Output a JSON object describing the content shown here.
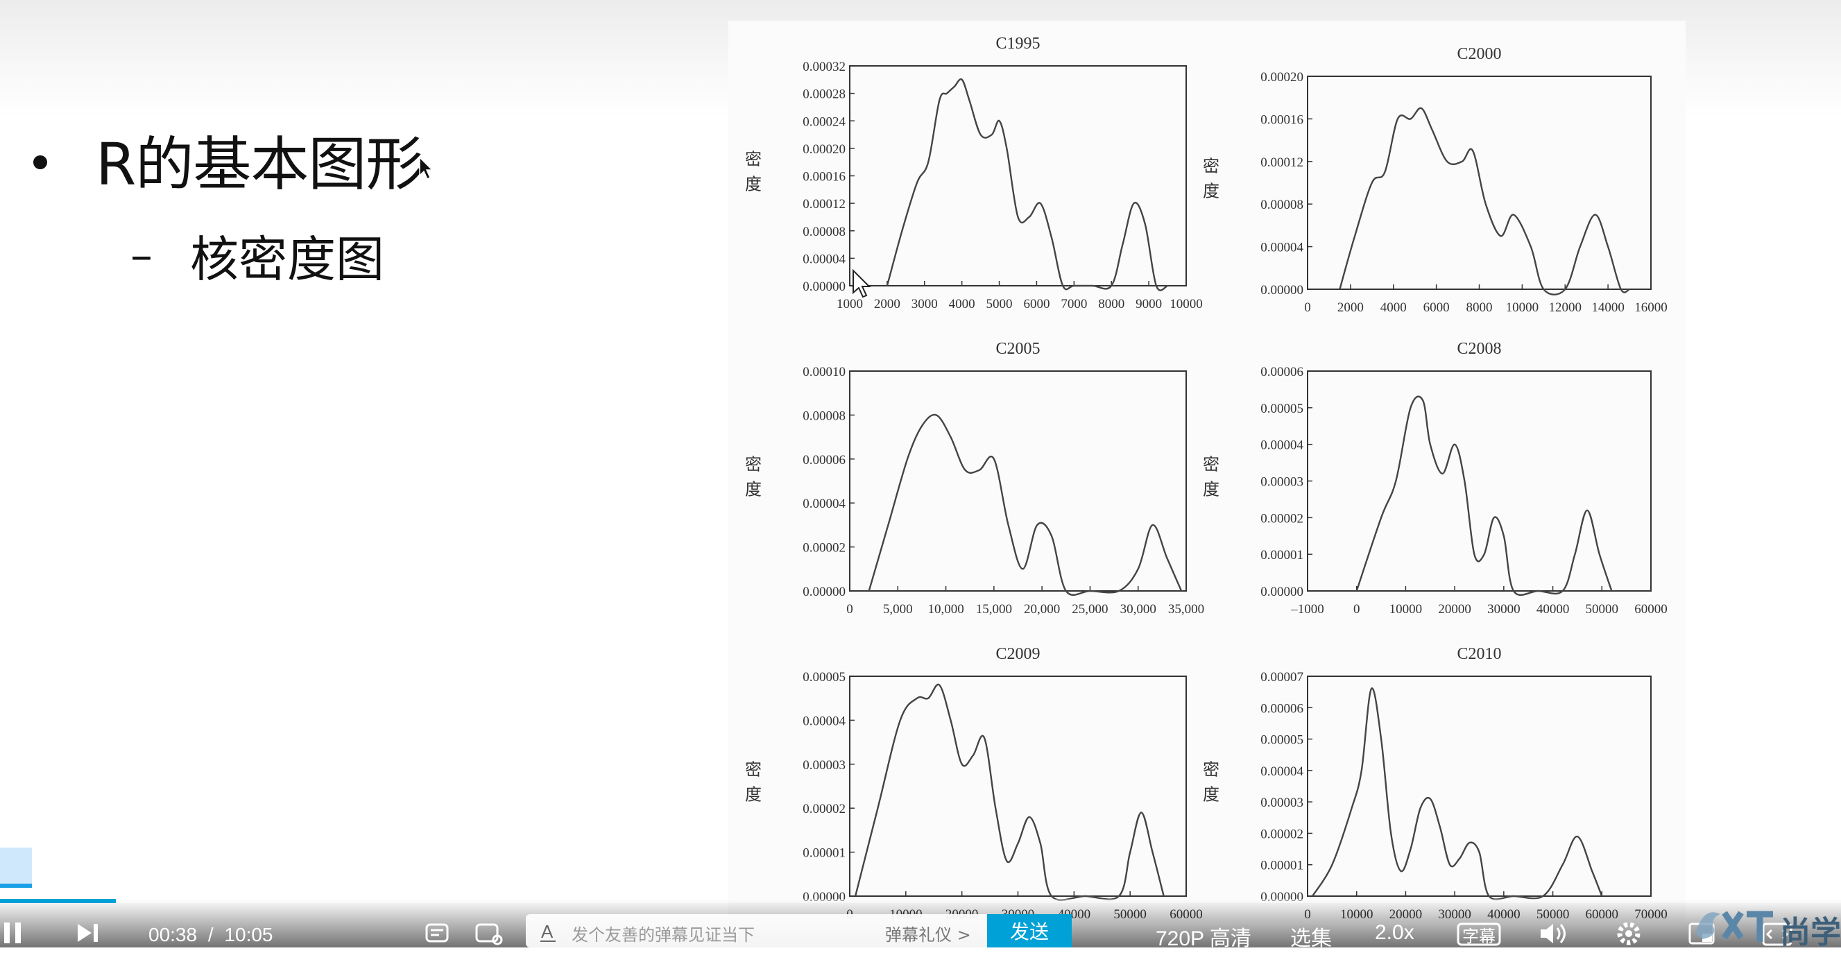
{
  "slide": {
    "bullet_title": "R的基本图形",
    "sub_dash": "–",
    "sub_title": "核密度图"
  },
  "chart_data": [
    {
      "type": "line",
      "title": "C1995",
      "ylabel": "密\n度",
      "x_ticks": [
        "1000",
        "2000",
        "3000",
        "4000",
        "5000",
        "6000",
        "7000",
        "8000",
        "9000",
        "10000"
      ],
      "y_ticks": [
        "0.00000",
        "0.00004",
        "0.00008",
        "0.00012",
        "0.00016",
        "0.00020",
        "0.00024",
        "0.00028",
        "0.00032"
      ],
      "xlim": [
        1000,
        10000
      ],
      "ylim": [
        0,
        0.00032
      ],
      "x": [
        2000,
        2400,
        2800,
        3100,
        3400,
        3600,
        3800,
        4000,
        4200,
        4500,
        4800,
        5000,
        5200,
        5500,
        5800,
        6100,
        6400,
        6700,
        7000,
        7500,
        8000,
        8300,
        8600,
        8900,
        9200,
        9500
      ],
      "y": [
        0.0,
        8e-05,
        0.00015,
        0.00018,
        0.00027,
        0.00028,
        0.00029,
        0.0003,
        0.00027,
        0.00022,
        0.00022,
        0.00024,
        0.0002,
        0.0001,
        0.0001,
        0.00012,
        7e-05,
        0.0,
        0.0,
        0.0,
        0.0,
        6e-05,
        0.00012,
        9e-05,
        0.0,
        0.0
      ]
    },
    {
      "type": "line",
      "title": "C2000",
      "ylabel": "密\n度",
      "x_ticks": [
        "0",
        "2000",
        "4000",
        "6000",
        "8000",
        "10000",
        "12000",
        "14000",
        "16000"
      ],
      "y_ticks": [
        "0.00000",
        "0.00004",
        "0.00008",
        "0.00012",
        "0.00016",
        "0.00020"
      ],
      "xlim": [
        0,
        16000
      ],
      "ylim": [
        0,
        0.0002
      ],
      "x": [
        1500,
        2200,
        3000,
        3600,
        4200,
        4800,
        5300,
        5800,
        6500,
        7200,
        7700,
        8300,
        9000,
        9600,
        10400,
        11000,
        12000,
        12700,
        13400,
        14000,
        14600,
        15000
      ],
      "y": [
        0.0,
        5e-05,
        0.0001,
        0.00011,
        0.00016,
        0.00016,
        0.00017,
        0.00015,
        0.00012,
        0.00012,
        0.00013,
        8e-05,
        5e-05,
        7e-05,
        4e-05,
        0.0,
        0.0,
        4e-05,
        7e-05,
        4e-05,
        0.0,
        0.0
      ]
    },
    {
      "type": "line",
      "title": "C2005",
      "ylabel": "密\n度",
      "x_ticks": [
        "0",
        "5,000",
        "10,000",
        "15,000",
        "20,000",
        "25,000",
        "30,000",
        "35,000"
      ],
      "y_ticks": [
        "0.00000",
        "0.00002",
        "0.00004",
        "0.00006",
        "0.00008",
        "0.00010"
      ],
      "xlim": [
        0,
        35000
      ],
      "ylim": [
        0,
        0.0001
      ],
      "x": [
        2000,
        4000,
        6000,
        7500,
        9000,
        10500,
        12000,
        13500,
        15000,
        16500,
        18000,
        19500,
        21000,
        22500,
        25000,
        28000,
        30000,
        31500,
        33000,
        34500
      ],
      "y": [
        0.0,
        3e-05,
        6e-05,
        7.5e-05,
        8e-05,
        7e-05,
        5.5e-05,
        5.5e-05,
        6e-05,
        3e-05,
        1e-05,
        3e-05,
        2.5e-05,
        0.0,
        0.0,
        0.0,
        1e-05,
        3e-05,
        1.5e-05,
        0.0
      ]
    },
    {
      "type": "line",
      "title": "C2008",
      "ylabel": "密\n度",
      "x_ticks": [
        "–1000",
        "0",
        "10000",
        "20000",
        "30000",
        "40000",
        "50000",
        "60000"
      ],
      "y_ticks": [
        "0.00000",
        "0.00001",
        "0.00002",
        "0.00003",
        "0.00004",
        "0.00005",
        "0.00006"
      ],
      "xlim": [
        -10000,
        60000
      ],
      "ylim": [
        0,
        6e-05
      ],
      "x": [
        0,
        5000,
        8000,
        11000,
        13500,
        15000,
        17500,
        20000,
        22000,
        24000,
        26000,
        28000,
        30000,
        32000,
        37000,
        42000,
        44500,
        47000,
        49500,
        52000
      ],
      "y": [
        0.0,
        2e-05,
        3e-05,
        5e-05,
        5.2e-05,
        4e-05,
        3.2e-05,
        4e-05,
        3e-05,
        1e-05,
        1e-05,
        2e-05,
        1.5e-05,
        0.0,
        0.0,
        0.0,
        1e-05,
        2.2e-05,
        1e-05,
        0.0
      ]
    },
    {
      "type": "line",
      "title": "C2009",
      "ylabel": "密\n度",
      "x_ticks": [
        "0",
        "10000",
        "20000",
        "30000",
        "40000",
        "50000",
        "60000"
      ],
      "y_ticks": [
        "0.00000",
        "0.00001",
        "0.00002",
        "0.00003",
        "0.00004",
        "0.00005"
      ],
      "xlim": [
        0,
        60000
      ],
      "ylim": [
        0,
        5e-05
      ],
      "x": [
        1000,
        5000,
        9000,
        12000,
        14000,
        16000,
        18000,
        20000,
        22000,
        24000,
        26000,
        28000,
        30000,
        32000,
        34000,
        36000,
        42000,
        48000,
        50000,
        52000,
        54000,
        56000
      ],
      "y": [
        0.0,
        2e-05,
        4e-05,
        4.5e-05,
        4.5e-05,
        4.8e-05,
        4e-05,
        3e-05,
        3.2e-05,
        3.6e-05,
        2e-05,
        8e-06,
        1.2e-05,
        1.8e-05,
        1.2e-05,
        0.0,
        0.0,
        0.0,
        1e-05,
        1.9e-05,
        1e-05,
        0.0
      ]
    },
    {
      "type": "line",
      "title": "C2010",
      "ylabel": "密\n度",
      "x_ticks": [
        "0",
        "10000",
        "20000",
        "30000",
        "40000",
        "50000",
        "60000",
        "70000"
      ],
      "y_ticks": [
        "0.00000",
        "0.00001",
        "0.00002",
        "0.00003",
        "0.00004",
        "0.00005",
        "0.00006",
        "0.00007"
      ],
      "xlim": [
        0,
        70000
      ],
      "ylim": [
        0,
        7e-05
      ],
      "x": [
        1000,
        5000,
        9000,
        11000,
        13000,
        15000,
        17000,
        19000,
        21000,
        23000,
        25000,
        27000,
        29000,
        31000,
        33000,
        35000,
        37000,
        42000,
        48000,
        52000,
        55000,
        58000,
        60000
      ],
      "y": [
        0.0,
        1e-05,
        2.8e-05,
        4e-05,
        6.6e-05,
        5e-05,
        2e-05,
        8e-06,
        1.5e-05,
        2.8e-05,
        3.1e-05,
        2.2e-05,
        1e-05,
        1.2e-05,
        1.7e-05,
        1.4e-05,
        0.0,
        0.0,
        0.0,
        1e-05,
        1.9e-05,
        8e-06,
        0.0
      ]
    }
  ],
  "player": {
    "time_current": "00:38",
    "time_sep": "/",
    "time_total": "10:05",
    "progress": 0.0628,
    "danmaku_placeholder": "发个友善的弹幕见证当下",
    "danmaku_etiquette": "弹幕礼仪 >",
    "send_label": "发送",
    "quality_label": "720P 高清",
    "episodes_label": "选集",
    "speed_label": "2.0x",
    "subtitle_label": "字幕",
    "logo_text": "尚学",
    "accent": "#00a1d6"
  }
}
